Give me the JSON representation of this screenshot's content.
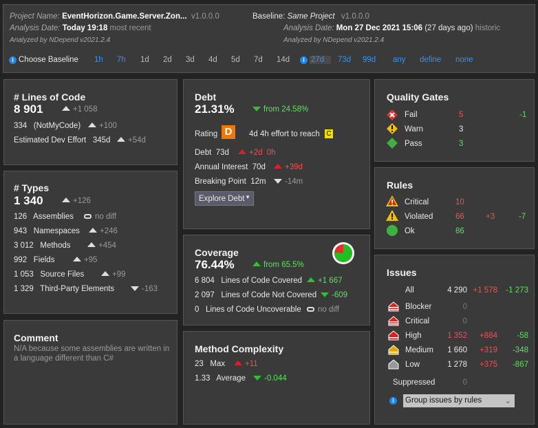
{
  "header": {
    "project_label": "Project Name:",
    "project_name": "EventHorizon.Game.Server.Zon...",
    "project_version": "v1.0.0.0",
    "analysis_label": "Analysis Date:",
    "analysis_date": "Today 19:18",
    "analysis_note": "most recent",
    "analyzed_by": "Analyzed by NDepend v2021.2.4",
    "baseline_label": "Baseline:",
    "baseline_name": "Same Project",
    "baseline_version": "v1.0.0.0",
    "baseline_analysis_label": "Analysis Date:",
    "baseline_date": "Mon 27 Dec 2021  15:06",
    "baseline_note": "(27 days ago)",
    "baseline_state": "historic",
    "baseline_analyzed_by": "Analyzed by NDepend v2021.2.4",
    "choose_baseline": "Choose Baseline",
    "periods": [
      "1h",
      "7h",
      "1d",
      "2d",
      "3d",
      "4d",
      "5d",
      "7d",
      "14d",
      "27d",
      "73d",
      "99d",
      "any",
      "define",
      "none"
    ],
    "selected_period": "27d"
  },
  "loc": {
    "title": "# Lines of Code",
    "value": "8 901",
    "delta": "+1 058",
    "notmycode": "334",
    "notmycode_label": "(NotMyCode)",
    "notmycode_delta": "+100",
    "effort_label": "Estimated Dev Effort",
    "effort": "345d",
    "effort_delta": "+54d"
  },
  "types": {
    "title": "# Types",
    "value": "1 340",
    "delta": "+126",
    "rows": [
      {
        "value": "126",
        "label": "Assemblies",
        "delta": "no diff"
      },
      {
        "value": "943",
        "label": "Namespaces",
        "delta": "+246"
      },
      {
        "value": "3 012",
        "label": "Methods",
        "delta": "+454"
      },
      {
        "value": "992",
        "label": "Fields",
        "delta": "+95"
      },
      {
        "value": "1 053",
        "label": "Source Files",
        "delta": "+99"
      },
      {
        "value": "1 329",
        "label": "Third-Party Elements",
        "delta": "-163"
      }
    ]
  },
  "comment": {
    "title": "Comment",
    "text": "N/A because some assemblies are written in a language different than C#"
  },
  "debt": {
    "title": "Debt",
    "value": "21.31%",
    "from": "from 24.58%",
    "rating_label": "Rating",
    "rating": "D",
    "effort": "4d  4h effort to reach",
    "target": "C",
    "debt_label": "Debt",
    "debt": "73d",
    "debt_delta1": "+2d",
    "debt_delta2": "0h",
    "interest_label": "Annual Interest",
    "interest": "70d",
    "interest_delta": "+39d",
    "bp_label": "Breaking Point",
    "bp": "12m",
    "bp_delta": "-14m",
    "explore": "Explore Debt"
  },
  "coverage": {
    "title": "Coverage",
    "value": "76.44%",
    "from": "from 65.5%",
    "percent": 76.44,
    "rows": [
      {
        "value": "6 804",
        "label": "Lines of Code Covered",
        "delta": "+1 667"
      },
      {
        "value": "2 097",
        "label": "Lines of Code Not Covered",
        "delta": "-609"
      },
      {
        "value": "0",
        "label": "Lines of Code Uncoverable",
        "delta": "no diff"
      }
    ]
  },
  "complexity": {
    "title": "Method Complexity",
    "max": "23",
    "max_label": "Max",
    "max_delta": "+11",
    "avg": "1.33",
    "avg_label": "Average",
    "avg_delta": "-0.044"
  },
  "gates": {
    "title": "Quality Gates",
    "rows": [
      {
        "label": "Fail",
        "value": "5",
        "delta": "-1"
      },
      {
        "label": "Warn",
        "value": "3"
      },
      {
        "label": "Pass",
        "value": "3"
      }
    ]
  },
  "rules": {
    "title": "Rules",
    "rows": [
      {
        "label": "Critical",
        "value": "10"
      },
      {
        "label": "Violated",
        "value": "66",
        "plus": "+3",
        "minus": "-7"
      },
      {
        "label": "Ok",
        "value": "86"
      }
    ]
  },
  "issues": {
    "title": "Issues",
    "all_label": "All",
    "all": "4 290",
    "all_plus": "+1 578",
    "all_minus": "-1 273",
    "rows": [
      {
        "label": "Blocker",
        "value": "0"
      },
      {
        "label": "Critical",
        "value": "0"
      },
      {
        "label": "High",
        "value": "1 352",
        "plus": "+884",
        "minus": "-58"
      },
      {
        "label": "Medium",
        "value": "1 660",
        "plus": "+319",
        "minus": "-348"
      },
      {
        "label": "Low",
        "value": "1 278",
        "plus": "+375",
        "minus": "-867"
      }
    ],
    "suppressed_label": "Suppressed",
    "suppressed": "0",
    "group_by": "Group issues by rules"
  },
  "colors": {
    "red": "#f05050",
    "green": "#5ee05e",
    "link": "#3b8fe8",
    "rating": "#f07800",
    "target": "#f0e000"
  }
}
